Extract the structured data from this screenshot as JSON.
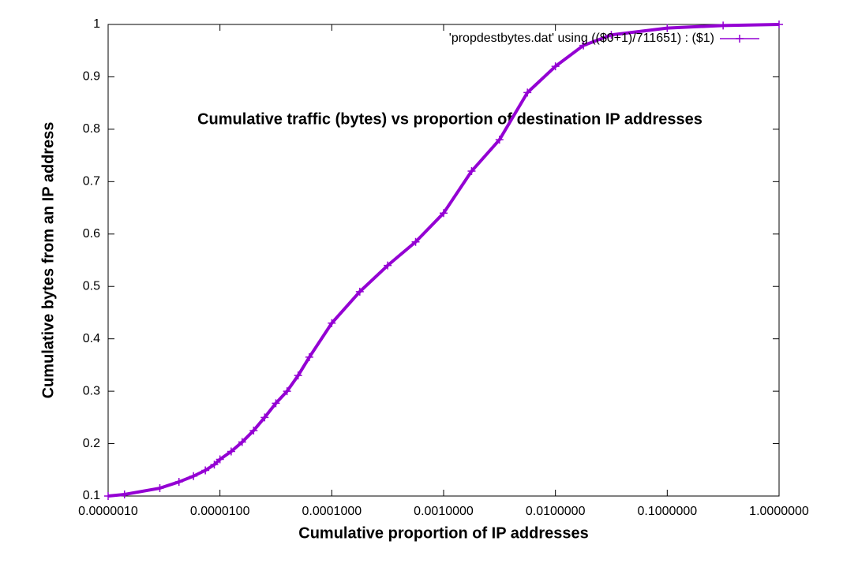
{
  "chart_data": {
    "type": "line",
    "title": "Cumulative traffic (bytes) vs proportion of destination IP addresses",
    "x_label": "Cumulative proportion of IP addresses",
    "y_label": "Cumulative bytes from an IP address",
    "x_log": true,
    "grid": false,
    "legend_position": "top-right",
    "xlim": [
      1e-06,
      1
    ],
    "ylim": [
      0.1,
      1
    ],
    "xticks": [
      {
        "value": 1e-06,
        "label": "0.0000010"
      },
      {
        "value": 1e-05,
        "label": "0.0000100"
      },
      {
        "value": 0.0001,
        "label": "0.0001000"
      },
      {
        "value": 0.001,
        "label": "0.0010000"
      },
      {
        "value": 0.01,
        "label": "0.0100000"
      },
      {
        "value": 0.1,
        "label": "0.1000000"
      },
      {
        "value": 1,
        "label": "1.0000000"
      }
    ],
    "yticks": [
      0.1,
      0.2,
      0.3,
      0.4,
      0.5,
      0.6,
      0.7,
      0.8,
      0.9,
      1
    ],
    "series": [
      {
        "name": "'propdestbytes.dat' using (($0+1)/711651) : ($1)",
        "color": "#9400d3",
        "x": [
          1e-06,
          1.4e-06,
          2.9e-06,
          4.3e-06,
          5.8e-06,
          7.4e-06,
          8.9e-06,
          1e-05,
          1.26e-05,
          1.58e-05,
          2e-05,
          2.51e-05,
          3.16e-05,
          3.98e-05,
          5e-05,
          6.3e-05,
          0.0001,
          0.000178,
          0.000316,
          0.000562,
          0.001,
          0.00178,
          0.00316,
          0.00562,
          0.01,
          0.0178,
          0.0316,
          0.1,
          0.316,
          1
        ],
        "values": [
          0.1,
          0.103,
          0.115,
          0.127,
          0.138,
          0.149,
          0.16,
          0.17,
          0.185,
          0.203,
          0.225,
          0.25,
          0.277,
          0.3,
          0.33,
          0.365,
          0.43,
          0.49,
          0.54,
          0.585,
          0.64,
          0.72,
          0.78,
          0.87,
          0.92,
          0.96,
          0.98,
          0.993,
          0.998,
          1
        ]
      }
    ]
  }
}
